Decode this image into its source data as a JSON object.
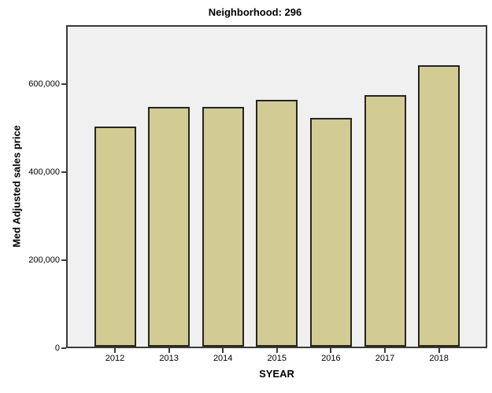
{
  "chart_data": {
    "type": "bar",
    "title": "Neighborhood: 296",
    "xlabel": "SYEAR",
    "ylabel": "Med Adjusted sales price",
    "categories": [
      "2012",
      "2013",
      "2014",
      "2015",
      "2016",
      "2017",
      "2018"
    ],
    "values": [
      500000,
      545000,
      545000,
      561000,
      520000,
      572000,
      640000
    ],
    "ylim": [
      0,
      730000
    ],
    "yticks": [
      0,
      200000,
      400000,
      600000
    ],
    "ytick_labels": [
      "0",
      "200,000",
      "400,000",
      "600,000"
    ],
    "grid": false,
    "legend": "none",
    "colors": {
      "bar_fill": "#d2cc94",
      "bar_border": "#26251c",
      "plot_background": "#f0f0f0",
      "axis": "#3b3b3b",
      "text": "#000000",
      "figure_background": "#ffffff"
    }
  }
}
